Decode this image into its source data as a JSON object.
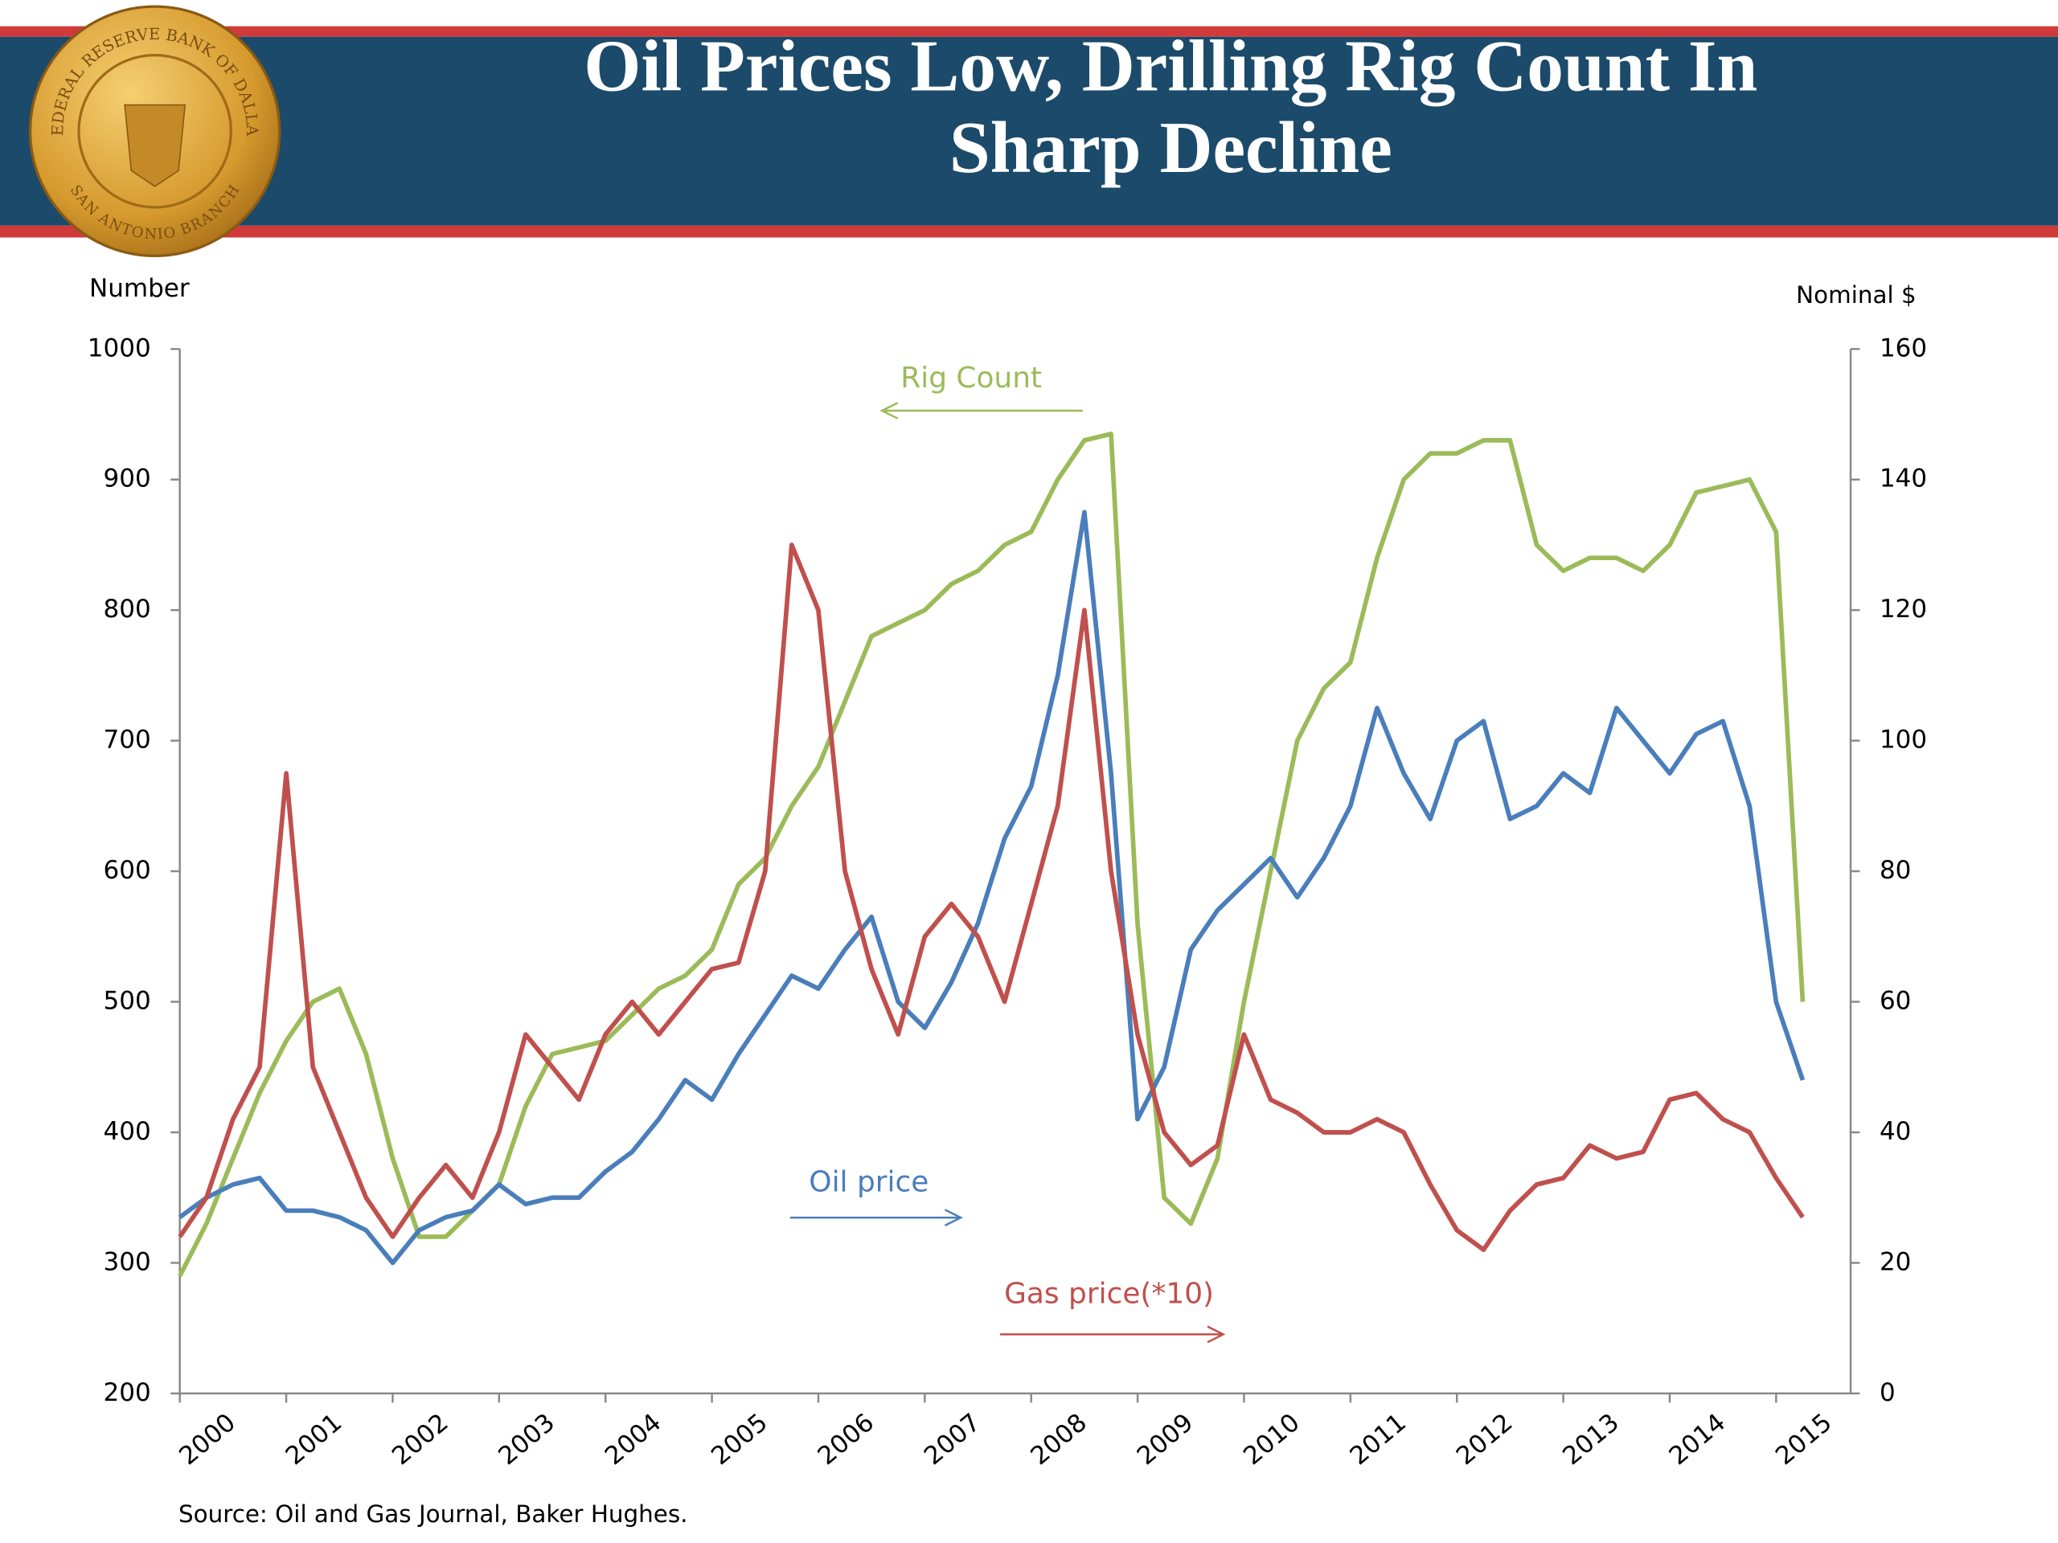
{
  "logo": {
    "top": "FEDERAL RESERVE BANK OF DALLAS",
    "bottom": "SAN ANTONIO BRANCH"
  },
  "chart_data": {
    "type": "line",
    "title": "Oil Prices Low, Drilling Rig Count In Sharp Decline",
    "y_label": "Number",
    "y2_label": "Nominal $",
    "source": "Source: Oil and Gas Journal, Baker Hughes.",
    "x": [
      2000,
      2000.25,
      2000.5,
      2000.75,
      2001,
      2001.25,
      2001.5,
      2001.75,
      2002,
      2002.25,
      2002.5,
      2002.75,
      2003,
      2003.25,
      2003.5,
      2003.75,
      2004,
      2004.25,
      2004.5,
      2004.75,
      2005,
      2005.25,
      2005.5,
      2005.75,
      2006,
      2006.25,
      2006.5,
      2006.75,
      2007,
      2007.25,
      2007.5,
      2007.75,
      2008,
      2008.25,
      2008.5,
      2008.75,
      2009,
      2009.25,
      2009.5,
      2009.75,
      2010,
      2010.25,
      2010.5,
      2010.75,
      2011,
      2011.25,
      2011.5,
      2011.75,
      2012,
      2012.25,
      2012.5,
      2012.75,
      2013,
      2013.25,
      2013.5,
      2013.75,
      2014,
      2014.25,
      2014.5,
      2014.75,
      2015,
      2015.25
    ],
    "xlim": [
      2000,
      2015.7
    ],
    "xticks": [
      2000,
      2001,
      2002,
      2003,
      2004,
      2005,
      2006,
      2007,
      2008,
      2009,
      2010,
      2011,
      2012,
      2013,
      2014,
      2015
    ],
    "ylim": [
      200,
      1000
    ],
    "yticks": [
      200,
      300,
      400,
      500,
      600,
      700,
      800,
      900,
      1000
    ],
    "y2lim": [
      0,
      160
    ],
    "y2ticks": [
      0,
      20,
      40,
      60,
      80,
      100,
      120,
      140,
      160
    ],
    "series": [
      {
        "name": "Rig Count",
        "color": "#9bbb59",
        "axis": "y",
        "values": [
          290,
          330,
          380,
          430,
          470,
          500,
          510,
          460,
          380,
          320,
          320,
          340,
          360,
          420,
          460,
          465,
          470,
          490,
          510,
          520,
          540,
          590,
          610,
          650,
          680,
          730,
          780,
          790,
          800,
          820,
          830,
          850,
          860,
          900,
          930,
          935,
          560,
          350,
          330,
          380,
          500,
          600,
          700,
          740,
          760,
          840,
          900,
          920,
          920,
          930,
          930,
          850,
          830,
          840,
          840,
          830,
          850,
          890,
          895,
          900,
          860,
          500
        ]
      },
      {
        "name": "Oil price",
        "color": "#4a7ebb",
        "axis": "y2",
        "values": [
          27,
          30,
          32,
          33,
          28,
          28,
          27,
          25,
          20,
          25,
          27,
          28,
          32,
          29,
          30,
          30,
          34,
          37,
          42,
          48,
          45,
          52,
          58,
          64,
          62,
          68,
          73,
          60,
          56,
          63,
          72,
          85,
          93,
          110,
          135,
          95,
          42,
          50,
          68,
          74,
          78,
          82,
          76,
          82,
          90,
          105,
          95,
          88,
          100,
          103,
          88,
          90,
          95,
          92,
          105,
          100,
          95,
          101,
          103,
          90,
          60,
          48
        ]
      },
      {
        "name": "Gas price(*10)",
        "color": "#c0504d",
        "axis": "y2",
        "values": [
          24,
          30,
          42,
          50,
          95,
          50,
          40,
          30,
          24,
          30,
          35,
          30,
          40,
          55,
          50,
          45,
          55,
          60,
          55,
          60,
          65,
          66,
          80,
          130,
          120,
          80,
          65,
          55,
          70,
          75,
          70,
          60,
          75,
          90,
          120,
          80,
          55,
          40,
          35,
          38,
          55,
          45,
          43,
          40,
          40,
          42,
          40,
          32,
          25,
          22,
          28,
          32,
          33,
          38,
          36,
          37,
          45,
          46,
          42,
          40,
          33,
          27
        ]
      }
    ]
  }
}
